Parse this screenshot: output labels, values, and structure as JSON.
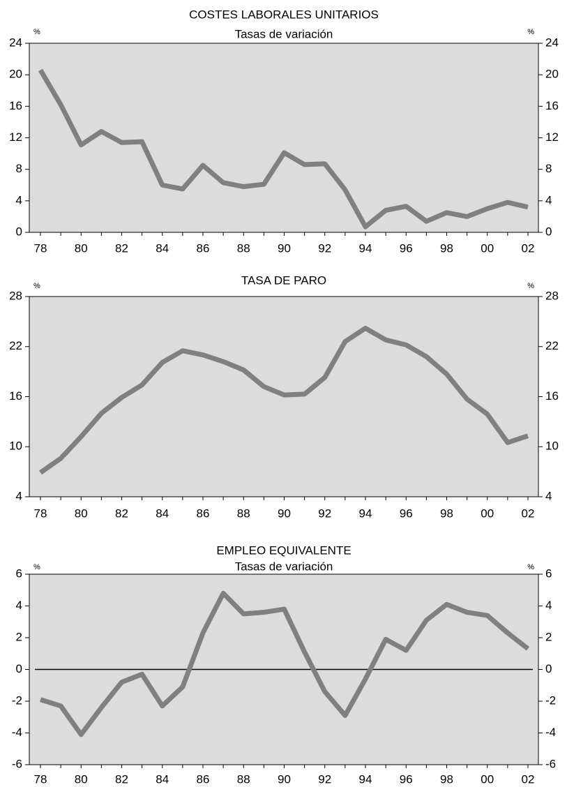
{
  "chart_data": [
    {
      "type": "line",
      "title": "COSTES LABORALES UNITARIOS",
      "subtitle": "Tasas de variación",
      "ylabel": "%",
      "y2label": "%",
      "categories": [
        "78",
        null,
        "80",
        null,
        "82",
        null,
        "84",
        null,
        "86",
        null,
        "88",
        null,
        "90",
        null,
        "92",
        null,
        "94",
        null,
        "96",
        null,
        "98",
        null,
        "00",
        null,
        "02"
      ],
      "series": [
        {
          "color": "#808080",
          "values": [
            20.6,
            16.2,
            11.1,
            12.8,
            11.4,
            11.5,
            6.0,
            5.5,
            8.5,
            6.3,
            5.8,
            6.1,
            10.1,
            8.6,
            8.7,
            5.4,
            0.7,
            2.8,
            3.3,
            1.4,
            2.5,
            2.0,
            3.0,
            3.8,
            3.2
          ]
        }
      ],
      "ylim": [
        0,
        24
      ],
      "yticks": [
        0,
        4,
        8,
        12,
        16,
        20,
        24
      ],
      "y2lim": [
        0,
        24
      ],
      "y2ticks": [
        0,
        4,
        8,
        12,
        16,
        20,
        24
      ],
      "background": "#dcdcdc",
      "grid": false,
      "zero_line": false
    },
    {
      "type": "line",
      "title": "TASA DE PARO",
      "ylabel": "%",
      "y2label": "%",
      "categories": [
        "78",
        null,
        "80",
        null,
        "82",
        null,
        "84",
        null,
        "86",
        null,
        "88",
        null,
        "90",
        null,
        "92",
        null,
        "94",
        null,
        "96",
        null,
        "98",
        null,
        "00",
        null,
        "02"
      ],
      "series": [
        {
          "color": "#808080",
          "values": [
            6.9,
            8.6,
            11.2,
            14.0,
            15.9,
            17.4,
            20.1,
            21.5,
            21.0,
            20.2,
            19.2,
            17.2,
            16.2,
            16.3,
            18.3,
            22.6,
            24.2,
            22.8,
            22.2,
            20.8,
            18.7,
            15.7,
            13.9,
            10.5,
            11.3
          ]
        }
      ],
      "ylim": [
        4,
        28
      ],
      "yticks": [
        4,
        10,
        16,
        22,
        28
      ],
      "y2lim": [
        4,
        28
      ],
      "y2ticks": [
        4,
        10,
        16,
        22,
        28
      ],
      "background": "#dcdcdc",
      "grid": false,
      "zero_line": false
    },
    {
      "type": "line",
      "title": "EMPLEO EQUIVALENTE",
      "subtitle": "Tasas de variación",
      "ylabel": "%",
      "y2label": "%",
      "categories": [
        "78",
        null,
        "80",
        null,
        "82",
        null,
        "84",
        null,
        "86",
        null,
        "88",
        null,
        "90",
        null,
        "92",
        null,
        "94",
        null,
        "96",
        null,
        "98",
        null,
        "00",
        null,
        "02"
      ],
      "series": [
        {
          "color": "#808080",
          "values": [
            -1.9,
            -2.3,
            -4.1,
            -2.4,
            -0.8,
            -0.3,
            -2.3,
            -1.1,
            2.3,
            4.8,
            3.5,
            3.6,
            3.8,
            1.1,
            -1.4,
            -2.9,
            -0.6,
            1.9,
            1.2,
            3.1,
            4.1,
            3.6,
            3.4,
            2.3,
            1.3
          ]
        }
      ],
      "ylim": [
        -6,
        6
      ],
      "yticks": [
        -6,
        -4,
        -2,
        0,
        2,
        4,
        6
      ],
      "y2lim": [
        -6,
        6
      ],
      "y2ticks": [
        -6,
        -4,
        -2,
        0,
        2,
        4,
        6
      ],
      "background": "#dcdcdc",
      "grid": false,
      "zero_line": true
    }
  ]
}
